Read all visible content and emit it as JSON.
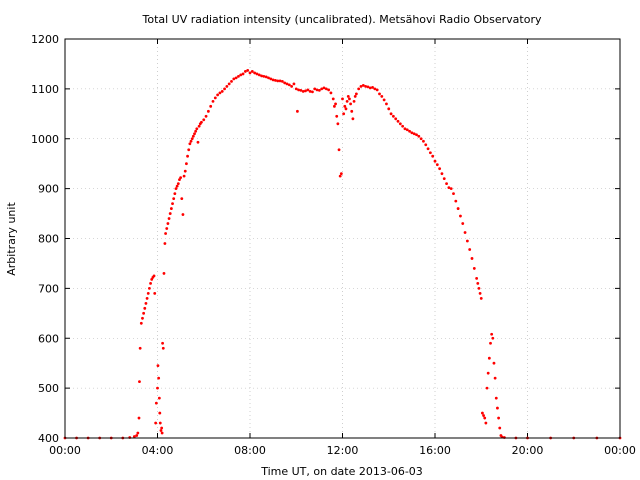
{
  "chart_data": {
    "type": "scatter",
    "title": "Total UV radiation intensity (uncalibrated). Metsähovi Radio Observatory",
    "xlabel": "Time UT, on date 2013-06-03",
    "ylabel": "Arbitrary unit",
    "x_ticks": [
      "00:00",
      "04:00",
      "08:00",
      "12:00",
      "16:00",
      "20:00",
      "00:00"
    ],
    "y_ticks": [
      400,
      500,
      600,
      700,
      800,
      900,
      1000,
      1100,
      1200
    ],
    "xlim_hours": [
      0,
      24
    ],
    "ylim": [
      400,
      1200
    ],
    "grid": true,
    "point_color": "#ff0000",
    "series": [
      {
        "points": [
          [
            0.0,
            400
          ],
          [
            0.5,
            400
          ],
          [
            1.0,
            400
          ],
          [
            1.5,
            400
          ],
          [
            2.0,
            400
          ],
          [
            2.5,
            400
          ],
          [
            2.8,
            401
          ],
          [
            3.0,
            403
          ],
          [
            3.1,
            405
          ],
          [
            3.15,
            410
          ],
          [
            3.2,
            440
          ],
          [
            3.22,
            513
          ],
          [
            3.25,
            580
          ],
          [
            3.3,
            630
          ],
          [
            3.35,
            640
          ],
          [
            3.4,
            650
          ],
          [
            3.45,
            660
          ],
          [
            3.5,
            670
          ],
          [
            3.55,
            680
          ],
          [
            3.6,
            690
          ],
          [
            3.65,
            700
          ],
          [
            3.7,
            710
          ],
          [
            3.75,
            718
          ],
          [
            3.8,
            722
          ],
          [
            3.85,
            725
          ],
          [
            3.88,
            690
          ],
          [
            3.92,
            430
          ],
          [
            3.95,
            470
          ],
          [
            4.0,
            500
          ],
          [
            4.02,
            545
          ],
          [
            4.05,
            520
          ],
          [
            4.08,
            480
          ],
          [
            4.1,
            450
          ],
          [
            4.12,
            430
          ],
          [
            4.15,
            415
          ],
          [
            4.18,
            420
          ],
          [
            4.2,
            410
          ],
          [
            4.22,
            590
          ],
          [
            4.25,
            580
          ],
          [
            4.28,
            730
          ],
          [
            4.32,
            790
          ],
          [
            4.35,
            810
          ],
          [
            4.4,
            820
          ],
          [
            4.45,
            830
          ],
          [
            4.5,
            840
          ],
          [
            4.55,
            850
          ],
          [
            4.6,
            860
          ],
          [
            4.65,
            870
          ],
          [
            4.7,
            880
          ],
          [
            4.75,
            890
          ],
          [
            4.8,
            900
          ],
          [
            4.85,
            905
          ],
          [
            4.9,
            910
          ],
          [
            4.95,
            918
          ],
          [
            5.0,
            922
          ],
          [
            5.05,
            880
          ],
          [
            5.1,
            848
          ],
          [
            5.15,
            925
          ],
          [
            5.2,
            935
          ],
          [
            5.25,
            950
          ],
          [
            5.3,
            965
          ],
          [
            5.35,
            978
          ],
          [
            5.4,
            990
          ],
          [
            5.45,
            995
          ],
          [
            5.5,
            1000
          ],
          [
            5.55,
            1005
          ],
          [
            5.6,
            1010
          ],
          [
            5.65,
            1015
          ],
          [
            5.7,
            1020
          ],
          [
            5.75,
            993
          ],
          [
            5.8,
            1025
          ],
          [
            5.85,
            1030
          ],
          [
            5.9,
            1033
          ],
          [
            6.0,
            1038
          ],
          [
            6.1,
            1045
          ],
          [
            6.2,
            1055
          ],
          [
            6.3,
            1065
          ],
          [
            6.4,
            1075
          ],
          [
            6.5,
            1082
          ],
          [
            6.6,
            1088
          ],
          [
            6.7,
            1092
          ],
          [
            6.8,
            1095
          ],
          [
            6.9,
            1100
          ],
          [
            7.0,
            1105
          ],
          [
            7.1,
            1110
          ],
          [
            7.2,
            1115
          ],
          [
            7.3,
            1120
          ],
          [
            7.4,
            1122
          ],
          [
            7.5,
            1125
          ],
          [
            7.6,
            1128
          ],
          [
            7.7,
            1130
          ],
          [
            7.8,
            1135
          ],
          [
            7.9,
            1137
          ],
          [
            8.0,
            1132
          ],
          [
            8.1,
            1135
          ],
          [
            8.2,
            1132
          ],
          [
            8.3,
            1130
          ],
          [
            8.4,
            1128
          ],
          [
            8.5,
            1126
          ],
          [
            8.6,
            1125
          ],
          [
            8.7,
            1124
          ],
          [
            8.8,
            1122
          ],
          [
            8.9,
            1120
          ],
          [
            9.0,
            1118
          ],
          [
            9.1,
            1117
          ],
          [
            9.2,
            1116
          ],
          [
            9.3,
            1116
          ],
          [
            9.4,
            1115
          ],
          [
            9.5,
            1112
          ],
          [
            9.6,
            1110
          ],
          [
            9.7,
            1108
          ],
          [
            9.8,
            1105
          ],
          [
            9.9,
            1110
          ],
          [
            10.0,
            1100
          ],
          [
            10.05,
            1055
          ],
          [
            10.1,
            1098
          ],
          [
            10.2,
            1097
          ],
          [
            10.3,
            1095
          ],
          [
            10.4,
            1096
          ],
          [
            10.5,
            1098
          ],
          [
            10.6,
            1095
          ],
          [
            10.7,
            1094
          ],
          [
            10.8,
            1100
          ],
          [
            10.9,
            1098
          ],
          [
            11.0,
            1097
          ],
          [
            11.1,
            1100
          ],
          [
            11.2,
            1102
          ],
          [
            11.3,
            1100
          ],
          [
            11.4,
            1098
          ],
          [
            11.5,
            1092
          ],
          [
            11.6,
            1080
          ],
          [
            11.65,
            1065
          ],
          [
            11.7,
            1070
          ],
          [
            11.75,
            1045
          ],
          [
            11.8,
            1030
          ],
          [
            11.85,
            978
          ],
          [
            11.9,
            925
          ],
          [
            11.95,
            930
          ],
          [
            12.0,
            1080
          ],
          [
            12.05,
            1050
          ],
          [
            12.1,
            1065
          ],
          [
            12.15,
            1060
          ],
          [
            12.2,
            1075
          ],
          [
            12.25,
            1085
          ],
          [
            12.3,
            1080
          ],
          [
            12.35,
            1070
          ],
          [
            12.4,
            1055
          ],
          [
            12.45,
            1040
          ],
          [
            12.5,
            1075
          ],
          [
            12.55,
            1085
          ],
          [
            12.6,
            1090
          ],
          [
            12.7,
            1100
          ],
          [
            12.8,
            1105
          ],
          [
            12.9,
            1107
          ],
          [
            13.0,
            1105
          ],
          [
            13.1,
            1104
          ],
          [
            13.2,
            1102
          ],
          [
            13.3,
            1103
          ],
          [
            13.4,
            1100
          ],
          [
            13.5,
            1098
          ],
          [
            13.6,
            1090
          ],
          [
            13.7,
            1085
          ],
          [
            13.8,
            1078
          ],
          [
            13.9,
            1070
          ],
          [
            14.0,
            1060
          ],
          [
            14.1,
            1050
          ],
          [
            14.2,
            1045
          ],
          [
            14.3,
            1040
          ],
          [
            14.4,
            1035
          ],
          [
            14.5,
            1030
          ],
          [
            14.6,
            1025
          ],
          [
            14.7,
            1020
          ],
          [
            14.8,
            1018
          ],
          [
            14.9,
            1015
          ],
          [
            15.0,
            1012
          ],
          [
            15.1,
            1010
          ],
          [
            15.2,
            1008
          ],
          [
            15.3,
            1005
          ],
          [
            15.4,
            1000
          ],
          [
            15.5,
            995
          ],
          [
            15.6,
            988
          ],
          [
            15.7,
            980
          ],
          [
            15.8,
            972
          ],
          [
            15.9,
            965
          ],
          [
            16.0,
            955
          ],
          [
            16.1,
            948
          ],
          [
            16.2,
            940
          ],
          [
            16.3,
            930
          ],
          [
            16.4,
            920
          ],
          [
            16.5,
            910
          ],
          [
            16.6,
            902
          ],
          [
            16.7,
            900
          ],
          [
            16.8,
            890
          ],
          [
            16.9,
            875
          ],
          [
            17.0,
            860
          ],
          [
            17.1,
            845
          ],
          [
            17.2,
            830
          ],
          [
            17.3,
            812
          ],
          [
            17.4,
            795
          ],
          [
            17.5,
            778
          ],
          [
            17.6,
            760
          ],
          [
            17.7,
            740
          ],
          [
            17.8,
            720
          ],
          [
            17.85,
            710
          ],
          [
            17.9,
            700
          ],
          [
            17.95,
            690
          ],
          [
            18.0,
            680
          ],
          [
            18.05,
            450
          ],
          [
            18.1,
            445
          ],
          [
            18.15,
            440
          ],
          [
            18.2,
            430
          ],
          [
            18.25,
            500
          ],
          [
            18.3,
            530
          ],
          [
            18.35,
            560
          ],
          [
            18.4,
            590
          ],
          [
            18.45,
            608
          ],
          [
            18.5,
            600
          ],
          [
            18.55,
            550
          ],
          [
            18.6,
            520
          ],
          [
            18.65,
            480
          ],
          [
            18.7,
            460
          ],
          [
            18.75,
            440
          ],
          [
            18.8,
            420
          ],
          [
            18.85,
            405
          ],
          [
            18.9,
            402
          ],
          [
            19.0,
            401
          ],
          [
            19.5,
            400
          ],
          [
            20.0,
            400
          ],
          [
            21.0,
            400
          ],
          [
            22.0,
            400
          ],
          [
            23.0,
            400
          ],
          [
            24.0,
            400
          ]
        ]
      }
    ]
  }
}
